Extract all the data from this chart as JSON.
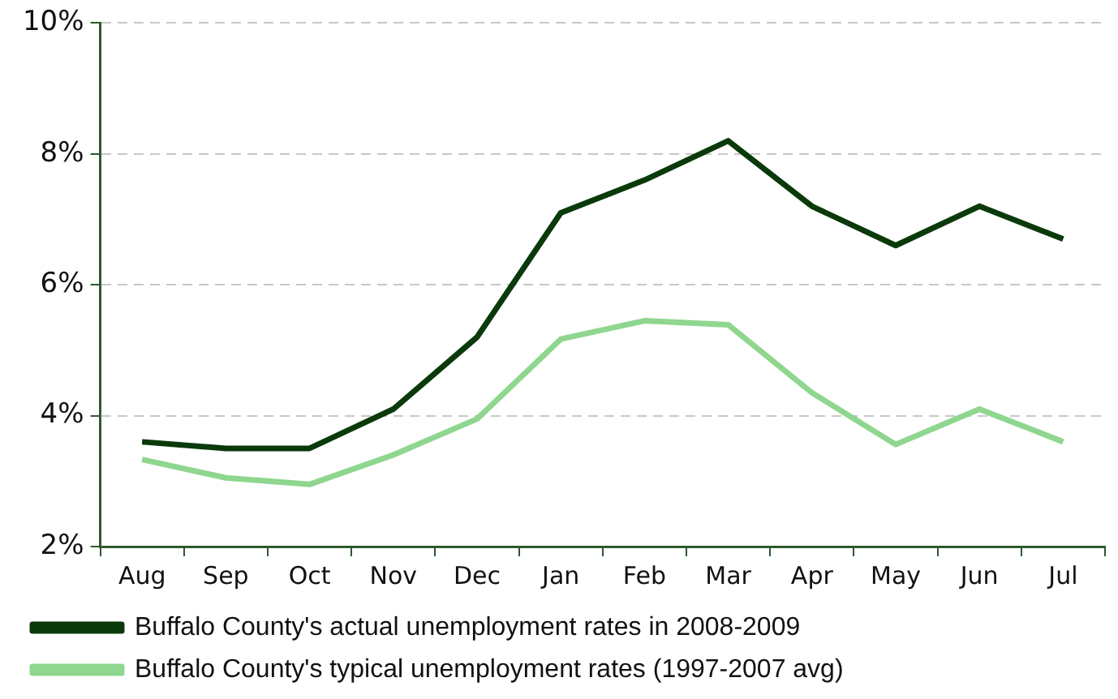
{
  "chart_data": {
    "type": "line",
    "categories": [
      "Aug",
      "Sep",
      "Oct",
      "Nov",
      "Dec",
      "Jan",
      "Feb",
      "Mar",
      "Apr",
      "May",
      "Jun",
      "Jul"
    ],
    "series": [
      {
        "name": "Buffalo County's actual unemployment rates in 2008-2009",
        "color": "#0a3a0a",
        "values": [
          3.6,
          3.5,
          3.5,
          4.1,
          5.2,
          7.1,
          7.6,
          8.2,
          7.2,
          6.6,
          7.2,
          6.7
        ]
      },
      {
        "name": "Buffalo County's typical unemployment rates (1997-2007 avg)",
        "color": "#8fd68f",
        "values": [
          3.33,
          3.05,
          2.95,
          3.4,
          3.95,
          5.17,
          5.45,
          5.39,
          4.35,
          3.56,
          4.1,
          3.6
        ]
      }
    ],
    "ylim": [
      2,
      10
    ],
    "yticks": [
      {
        "value": 2,
        "label": "2%"
      },
      {
        "value": 4,
        "label": "4%"
      },
      {
        "value": 6,
        "label": "6%"
      },
      {
        "value": 8,
        "label": "8%"
      },
      {
        "value": 10,
        "label": "10%"
      }
    ],
    "grid": "y",
    "legend": "bottom",
    "marker": "none",
    "line_style": "solid"
  }
}
